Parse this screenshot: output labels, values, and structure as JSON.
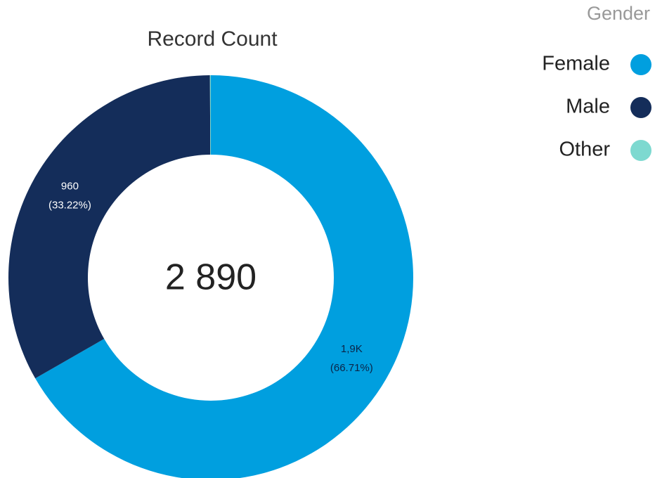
{
  "chart_data": {
    "type": "donut",
    "title": "Record Count",
    "legend_title": "Gender",
    "legend": "top-right",
    "categories": [
      "Female",
      "Male",
      "Other"
    ],
    "values": [
      1928,
      960,
      2
    ],
    "value_labels": [
      "1,9K",
      "960",
      null
    ],
    "percent_labels": [
      "(66.71%)",
      "(33.22%)",
      null
    ],
    "colors": [
      "#009fdf",
      "#142d5a",
      "#7dd9d0"
    ],
    "center_label": "2 890"
  }
}
